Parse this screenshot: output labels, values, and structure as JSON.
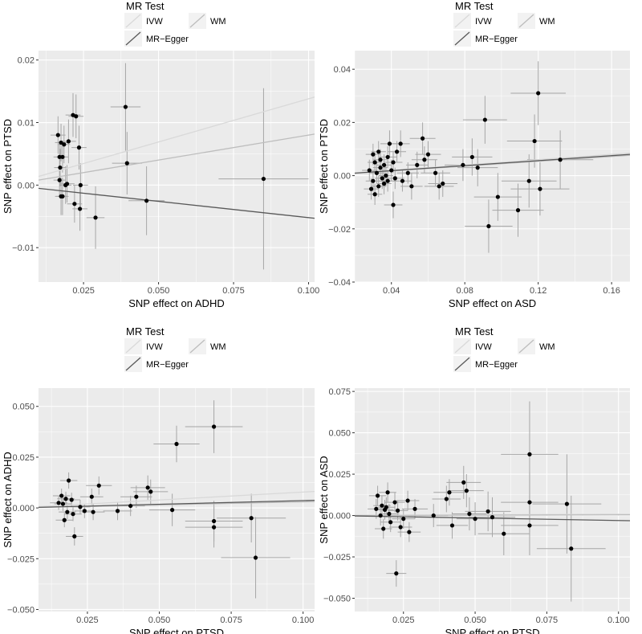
{
  "legend": {
    "title": "MR Test",
    "entries": [
      {
        "label": "IVW",
        "color": "#d9d9d9"
      },
      {
        "label": "WM",
        "color": "#bdbdbd"
      },
      {
        "label": "MR−Egger",
        "color": "#595959"
      }
    ]
  },
  "colors": {
    "panel_bg": "#ebebeb",
    "grid": "#ffffff",
    "point": "#000000",
    "errorbar": "#a6a6a6"
  },
  "chart_data": [
    {
      "type": "scatter",
      "xlabel": "SNP effect on ADHD",
      "ylabel": "SNP effect on PTSD",
      "xlim": [
        0.01,
        0.102
      ],
      "ylim": [
        -0.0155,
        0.0215
      ],
      "xticks": [
        0.025,
        0.05,
        0.075,
        0.1
      ],
      "xtick_labels": [
        "0.025",
        "0.050",
        "0.075",
        "0.100"
      ],
      "yticks": [
        -0.01,
        0.0,
        0.01,
        0.02
      ],
      "ytick_labels": [
        "−0.01",
        "0.00",
        "0.01",
        "0.02"
      ],
      "points": [
        {
          "x": 0.0165,
          "y": 0.008,
          "xerr": 0.0025,
          "yerr": 0.003
        },
        {
          "x": 0.017,
          "y": 0.0045,
          "xerr": 0.002,
          "yerr": 0.0025
        },
        {
          "x": 0.0175,
          "y": 0.0068,
          "xerr": 0.002,
          "yerr": 0.003
        },
        {
          "x": 0.018,
          "y": 0.0045,
          "xerr": 0.002,
          "yerr": 0.0025
        },
        {
          "x": 0.0172,
          "y": 0.0028,
          "xerr": 0.002,
          "yerr": 0.003
        },
        {
          "x": 0.017,
          "y": 0.0008,
          "xerr": 0.002,
          "yerr": 0.0025
        },
        {
          "x": 0.0175,
          "y": -0.0018,
          "xerr": 0.002,
          "yerr": 0.003
        },
        {
          "x": 0.018,
          "y": -0.0018,
          "xerr": 0.002,
          "yerr": 0.003
        },
        {
          "x": 0.0185,
          "y": 0.0065,
          "xerr": 0.002,
          "yerr": 0.003
        },
        {
          "x": 0.019,
          "y": 0.0,
          "xerr": 0.002,
          "yerr": 0.003
        },
        {
          "x": 0.0195,
          "y": 0.0002,
          "xerr": 0.0025,
          "yerr": 0.003
        },
        {
          "x": 0.02,
          "y": 0.007,
          "xerr": 0.0025,
          "yerr": 0.0035
        },
        {
          "x": 0.0215,
          "y": 0.0112,
          "xerr": 0.0025,
          "yerr": 0.0035
        },
        {
          "x": 0.0225,
          "y": 0.011,
          "xerr": 0.0025,
          "yerr": 0.0035
        },
        {
          "x": 0.022,
          "y": -0.003,
          "xerr": 0.0025,
          "yerr": 0.003
        },
        {
          "x": 0.0235,
          "y": 0.006,
          "xerr": 0.0025,
          "yerr": 0.0035
        },
        {
          "x": 0.024,
          "y": 0.0,
          "xerr": 0.0025,
          "yerr": 0.0035
        },
        {
          "x": 0.0238,
          "y": -0.0038,
          "xerr": 0.0025,
          "yerr": 0.0035
        },
        {
          "x": 0.029,
          "y": -0.0052,
          "xerr": 0.003,
          "yerr": 0.005
        },
        {
          "x": 0.039,
          "y": 0.0125,
          "xerr": 0.005,
          "yerr": 0.007
        },
        {
          "x": 0.0395,
          "y": 0.0035,
          "xerr": 0.005,
          "yerr": 0.005
        },
        {
          "x": 0.046,
          "y": -0.0025,
          "xerr": 0.006,
          "yerr": 0.0055
        },
        {
          "x": 0.085,
          "y": 0.001,
          "xerr": 0.015,
          "yerr": 0.0145
        }
      ],
      "lines": [
        {
          "method": "IVW",
          "intercept": 0.0,
          "slope": 0.138
        },
        {
          "method": "WM",
          "intercept": 0.0,
          "slope": 0.08
        },
        {
          "method": "MR−Egger",
          "intercept": 0.0,
          "slope": -0.052
        }
      ]
    },
    {
      "type": "scatter",
      "xlabel": "SNP effect on ASD",
      "ylabel": "SNP effect on PTSD",
      "xlim": [
        0.02,
        0.17
      ],
      "ylim": [
        -0.04,
        0.047
      ],
      "xticks": [
        0.04,
        0.08,
        0.12,
        0.16
      ],
      "xtick_labels": [
        "0.04",
        "0.08",
        "0.12",
        "0.16"
      ],
      "yticks": [
        -0.04,
        -0.02,
        0.0,
        0.02,
        0.04
      ],
      "ytick_labels": [
        "−0.04",
        "−0.02",
        "0.00",
        "0.02",
        "0.04"
      ],
      "points": [
        {
          "x": 0.028,
          "y": 0.002,
          "xerr": 0.004,
          "yerr": 0.004
        },
        {
          "x": 0.029,
          "y": -0.005,
          "xerr": 0.004,
          "yerr": 0.004
        },
        {
          "x": 0.03,
          "y": 0.008,
          "xerr": 0.004,
          "yerr": 0.004
        },
        {
          "x": 0.03,
          "y": -0.002,
          "xerr": 0.004,
          "yerr": 0.004
        },
        {
          "x": 0.031,
          "y": 0.005,
          "xerr": 0.004,
          "yerr": 0.004
        },
        {
          "x": 0.031,
          "y": -0.007,
          "xerr": 0.004,
          "yerr": 0.004
        },
        {
          "x": 0.032,
          "y": 0.001,
          "xerr": 0.004,
          "yerr": 0.004
        },
        {
          "x": 0.033,
          "y": 0.009,
          "xerr": 0.004,
          "yerr": 0.004
        },
        {
          "x": 0.033,
          "y": -0.004,
          "xerr": 0.004,
          "yerr": 0.004
        },
        {
          "x": 0.034,
          "y": 0.003,
          "xerr": 0.004,
          "yerr": 0.004
        },
        {
          "x": 0.034,
          "y": 0.006,
          "xerr": 0.004,
          "yerr": 0.004
        },
        {
          "x": 0.035,
          "y": -0.001,
          "xerr": 0.004,
          "yerr": 0.004
        },
        {
          "x": 0.036,
          "y": 0.004,
          "xerr": 0.004,
          "yerr": 0.004
        },
        {
          "x": 0.036,
          "y": -0.003,
          "xerr": 0.004,
          "yerr": 0.004
        },
        {
          "x": 0.037,
          "y": 0.0,
          "xerr": 0.004,
          "yerr": 0.004
        },
        {
          "x": 0.038,
          "y": 0.007,
          "xerr": 0.005,
          "yerr": 0.004
        },
        {
          "x": 0.038,
          "y": -0.002,
          "xerr": 0.005,
          "yerr": 0.004
        },
        {
          "x": 0.039,
          "y": 0.012,
          "xerr": 0.005,
          "yerr": 0.005
        },
        {
          "x": 0.04,
          "y": 0.002,
          "xerr": 0.005,
          "yerr": 0.004
        },
        {
          "x": 0.041,
          "y": -0.011,
          "xerr": 0.005,
          "yerr": 0.005
        },
        {
          "x": 0.041,
          "y": 0.005,
          "xerr": 0.005,
          "yerr": 0.004
        },
        {
          "x": 0.042,
          "y": -0.001,
          "xerr": 0.005,
          "yerr": 0.004
        },
        {
          "x": 0.043,
          "y": 0.009,
          "xerr": 0.005,
          "yerr": 0.004
        },
        {
          "x": 0.045,
          "y": 0.012,
          "xerr": 0.005,
          "yerr": 0.005
        },
        {
          "x": 0.046,
          "y": -0.002,
          "xerr": 0.005,
          "yerr": 0.004
        },
        {
          "x": 0.049,
          "y": 0.001,
          "xerr": 0.006,
          "yerr": 0.004
        },
        {
          "x": 0.051,
          "y": -0.004,
          "xerr": 0.006,
          "yerr": 0.005
        },
        {
          "x": 0.054,
          "y": 0.004,
          "xerr": 0.006,
          "yerr": 0.005
        },
        {
          "x": 0.057,
          "y": 0.014,
          "xerr": 0.007,
          "yerr": 0.006
        },
        {
          "x": 0.058,
          "y": 0.006,
          "xerr": 0.007,
          "yerr": 0.005
        },
        {
          "x": 0.06,
          "y": 0.008,
          "xerr": 0.007,
          "yerr": 0.005
        },
        {
          "x": 0.064,
          "y": 0.001,
          "xerr": 0.008,
          "yerr": 0.005
        },
        {
          "x": 0.066,
          "y": -0.004,
          "xerr": 0.008,
          "yerr": 0.005
        },
        {
          "x": 0.068,
          "y": -0.003,
          "xerr": 0.008,
          "yerr": 0.005
        },
        {
          "x": 0.079,
          "y": 0.004,
          "xerr": 0.01,
          "yerr": 0.006
        },
        {
          "x": 0.084,
          "y": 0.007,
          "xerr": 0.011,
          "yerr": 0.007
        },
        {
          "x": 0.087,
          "y": 0.003,
          "xerr": 0.011,
          "yerr": 0.007
        },
        {
          "x": 0.091,
          "y": 0.021,
          "xerr": 0.012,
          "yerr": 0.009
        },
        {
          "x": 0.093,
          "y": -0.019,
          "xerr": 0.013,
          "yerr": 0.01
        },
        {
          "x": 0.098,
          "y": -0.008,
          "xerr": 0.013,
          "yerr": 0.009
        },
        {
          "x": 0.109,
          "y": -0.013,
          "xerr": 0.014,
          "yerr": 0.01
        },
        {
          "x": 0.115,
          "y": -0.002,
          "xerr": 0.015,
          "yerr": 0.01
        },
        {
          "x": 0.118,
          "y": 0.013,
          "xerr": 0.015,
          "yerr": 0.01
        },
        {
          "x": 0.12,
          "y": 0.031,
          "xerr": 0.015,
          "yerr": 0.012
        },
        {
          "x": 0.121,
          "y": -0.005,
          "xerr": 0.016,
          "yerr": 0.01
        },
        {
          "x": 0.132,
          "y": 0.006,
          "xerr": 0.018,
          "yerr": 0.011
        }
      ],
      "lines": [
        {
          "method": "IVW",
          "intercept": 0.0,
          "slope": 0.05
        },
        {
          "method": "WM",
          "intercept": 0.0,
          "slope": 0.045
        },
        {
          "method": "MR−Egger",
          "intercept": 0.0,
          "slope": 0.047
        }
      ]
    },
    {
      "type": "scatter",
      "xlabel": "SNP effect on PTSD",
      "ylabel": "SNP effect on ADHD",
      "xlim": [
        0.008,
        0.104
      ],
      "ylim": [
        -0.051,
        0.059
      ],
      "xticks": [
        0.025,
        0.05,
        0.075,
        0.1
      ],
      "xtick_labels": [
        "0.025",
        "0.050",
        "0.075",
        "0.100"
      ],
      "yticks": [
        -0.05,
        -0.025,
        0.0,
        0.025,
        0.05
      ],
      "ytick_labels": [
        "−0.050",
        "−0.025",
        "0.000",
        "0.025",
        "0.050"
      ],
      "points": [
        {
          "x": 0.015,
          "y": 0.0025,
          "xerr": 0.003,
          "yerr": 0.0035
        },
        {
          "x": 0.016,
          "y": 0.006,
          "xerr": 0.003,
          "yerr": 0.0035
        },
        {
          "x": 0.0165,
          "y": 0.002,
          "xerr": 0.003,
          "yerr": 0.0035
        },
        {
          "x": 0.017,
          "y": -0.006,
          "xerr": 0.003,
          "yerr": 0.0035
        },
        {
          "x": 0.0175,
          "y": 0.0045,
          "xerr": 0.003,
          "yerr": 0.0035
        },
        {
          "x": 0.018,
          "y": -0.002,
          "xerr": 0.003,
          "yerr": 0.0035
        },
        {
          "x": 0.0185,
          "y": 0.0135,
          "xerr": 0.003,
          "yerr": 0.004
        },
        {
          "x": 0.0195,
          "y": 0.004,
          "xerr": 0.003,
          "yerr": 0.0035
        },
        {
          "x": 0.02,
          "y": -0.003,
          "xerr": 0.003,
          "yerr": 0.0035
        },
        {
          "x": 0.0205,
          "y": -0.014,
          "xerr": 0.003,
          "yerr": 0.0045
        },
        {
          "x": 0.0225,
          "y": 0.0005,
          "xerr": 0.0035,
          "yerr": 0.0035
        },
        {
          "x": 0.024,
          "y": -0.0015,
          "xerr": 0.0035,
          "yerr": 0.0035
        },
        {
          "x": 0.0265,
          "y": 0.0055,
          "xerr": 0.004,
          "yerr": 0.004
        },
        {
          "x": 0.027,
          "y": -0.002,
          "xerr": 0.004,
          "yerr": 0.004
        },
        {
          "x": 0.029,
          "y": 0.011,
          "xerr": 0.0045,
          "yerr": 0.0045
        },
        {
          "x": 0.0355,
          "y": -0.0015,
          "xerr": 0.005,
          "yerr": 0.0045
        },
        {
          "x": 0.04,
          "y": 0.001,
          "xerr": 0.005,
          "yerr": 0.005
        },
        {
          "x": 0.042,
          "y": 0.0055,
          "xerr": 0.0055,
          "yerr": 0.0055
        },
        {
          "x": 0.046,
          "y": 0.01,
          "xerr": 0.006,
          "yerr": 0.006
        },
        {
          "x": 0.047,
          "y": 0.008,
          "xerr": 0.006,
          "yerr": 0.006
        },
        {
          "x": 0.0545,
          "y": -0.001,
          "xerr": 0.008,
          "yerr": 0.008
        },
        {
          "x": 0.056,
          "y": 0.0315,
          "xerr": 0.008,
          "yerr": 0.009
        },
        {
          "x": 0.069,
          "y": 0.04,
          "xerr": 0.01,
          "yerr": 0.013
        },
        {
          "x": 0.069,
          "y": -0.0065,
          "xerr": 0.01,
          "yerr": 0.01
        },
        {
          "x": 0.069,
          "y": -0.0095,
          "xerr": 0.01,
          "yerr": 0.01
        },
        {
          "x": 0.082,
          "y": -0.005,
          "xerr": 0.012,
          "yerr": 0.012
        },
        {
          "x": 0.0835,
          "y": -0.0245,
          "xerr": 0.012,
          "yerr": 0.02
        }
      ],
      "lines": [
        {
          "method": "IVW",
          "intercept": 0.0,
          "slope": 0.078
        },
        {
          "method": "WM",
          "intercept": 0.0,
          "slope": 0.03
        },
        {
          "method": "MR−Egger",
          "intercept": 0.0,
          "slope": 0.036
        }
      ]
    },
    {
      "type": "scatter",
      "xlabel": "SNP effect on PTSD",
      "ylabel": "SNP effect on ASD",
      "xlim": [
        0.008,
        0.104
      ],
      "ylim": [
        -0.058,
        0.077
      ],
      "xticks": [
        0.025,
        0.05,
        0.075,
        0.1
      ],
      "xtick_labels": [
        "0.025",
        "0.050",
        "0.075",
        "0.100"
      ],
      "yticks": [
        -0.05,
        -0.025,
        0.0,
        0.025,
        0.05,
        0.075
      ],
      "ytick_labels": [
        "−0.050",
        "−0.025",
        "0.000",
        "0.025",
        "0.050",
        "0.075"
      ],
      "points": [
        {
          "x": 0.0155,
          "y": 0.004,
          "xerr": 0.003,
          "yerr": 0.006
        },
        {
          "x": 0.016,
          "y": 0.012,
          "xerr": 0.003,
          "yerr": 0.006
        },
        {
          "x": 0.017,
          "y": 0.0,
          "xerr": 0.003,
          "yerr": 0.006
        },
        {
          "x": 0.0175,
          "y": 0.006,
          "xerr": 0.003,
          "yerr": 0.006
        },
        {
          "x": 0.018,
          "y": -0.008,
          "xerr": 0.003,
          "yerr": 0.006
        },
        {
          "x": 0.0185,
          "y": 0.0035,
          "xerr": 0.003,
          "yerr": 0.006
        },
        {
          "x": 0.019,
          "y": 0.005,
          "xerr": 0.003,
          "yerr": 0.006
        },
        {
          "x": 0.0195,
          "y": 0.014,
          "xerr": 0.003,
          "yerr": 0.006
        },
        {
          "x": 0.02,
          "y": 0.001,
          "xerr": 0.0035,
          "yerr": 0.006
        },
        {
          "x": 0.0205,
          "y": -0.004,
          "xerr": 0.0035,
          "yerr": 0.006
        },
        {
          "x": 0.022,
          "y": 0.008,
          "xerr": 0.0035,
          "yerr": 0.006
        },
        {
          "x": 0.0225,
          "y": -0.035,
          "xerr": 0.0035,
          "yerr": 0.008
        },
        {
          "x": 0.023,
          "y": 0.003,
          "xerr": 0.0035,
          "yerr": 0.006
        },
        {
          "x": 0.024,
          "y": -0.007,
          "xerr": 0.004,
          "yerr": 0.006
        },
        {
          "x": 0.025,
          "y": -0.002,
          "xerr": 0.004,
          "yerr": 0.006
        },
        {
          "x": 0.0265,
          "y": 0.009,
          "xerr": 0.004,
          "yerr": 0.006
        },
        {
          "x": 0.027,
          "y": -0.01,
          "xerr": 0.004,
          "yerr": 0.006
        },
        {
          "x": 0.029,
          "y": 0.004,
          "xerr": 0.0045,
          "yerr": 0.006
        },
        {
          "x": 0.0355,
          "y": 0.0,
          "xerr": 0.005,
          "yerr": 0.007
        },
        {
          "x": 0.04,
          "y": 0.01,
          "xerr": 0.005,
          "yerr": 0.008
        },
        {
          "x": 0.041,
          "y": 0.014,
          "xerr": 0.0055,
          "yerr": 0.008
        },
        {
          "x": 0.042,
          "y": -0.006,
          "xerr": 0.0055,
          "yerr": 0.008
        },
        {
          "x": 0.046,
          "y": 0.02,
          "xerr": 0.006,
          "yerr": 0.01
        },
        {
          "x": 0.047,
          "y": 0.015,
          "xerr": 0.006,
          "yerr": 0.01
        },
        {
          "x": 0.048,
          "y": 0.001,
          "xerr": 0.006,
          "yerr": 0.01
        },
        {
          "x": 0.05,
          "y": -0.002,
          "xerr": 0.0065,
          "yerr": 0.01
        },
        {
          "x": 0.0545,
          "y": 0.0025,
          "xerr": 0.008,
          "yerr": 0.012
        },
        {
          "x": 0.056,
          "y": -0.001,
          "xerr": 0.008,
          "yerr": 0.012
        },
        {
          "x": 0.06,
          "y": -0.011,
          "xerr": 0.009,
          "yerr": 0.013
        },
        {
          "x": 0.069,
          "y": 0.037,
          "xerr": 0.01,
          "yerr": 0.032
        },
        {
          "x": 0.069,
          "y": 0.008,
          "xerr": 0.01,
          "yerr": 0.018
        },
        {
          "x": 0.069,
          "y": -0.006,
          "xerr": 0.01,
          "yerr": 0.018
        },
        {
          "x": 0.082,
          "y": 0.007,
          "xerr": 0.012,
          "yerr": 0.03
        },
        {
          "x": 0.0835,
          "y": -0.02,
          "xerr": 0.012,
          "yerr": 0.032
        }
      ],
      "lines": [
        {
          "method": "IVW",
          "intercept": 0.0,
          "slope": 0.008
        },
        {
          "method": "WM",
          "intercept": 0.0,
          "slope": 0.004
        },
        {
          "method": "MR−Egger",
          "intercept": 0.0,
          "slope": -0.03
        }
      ]
    }
  ]
}
